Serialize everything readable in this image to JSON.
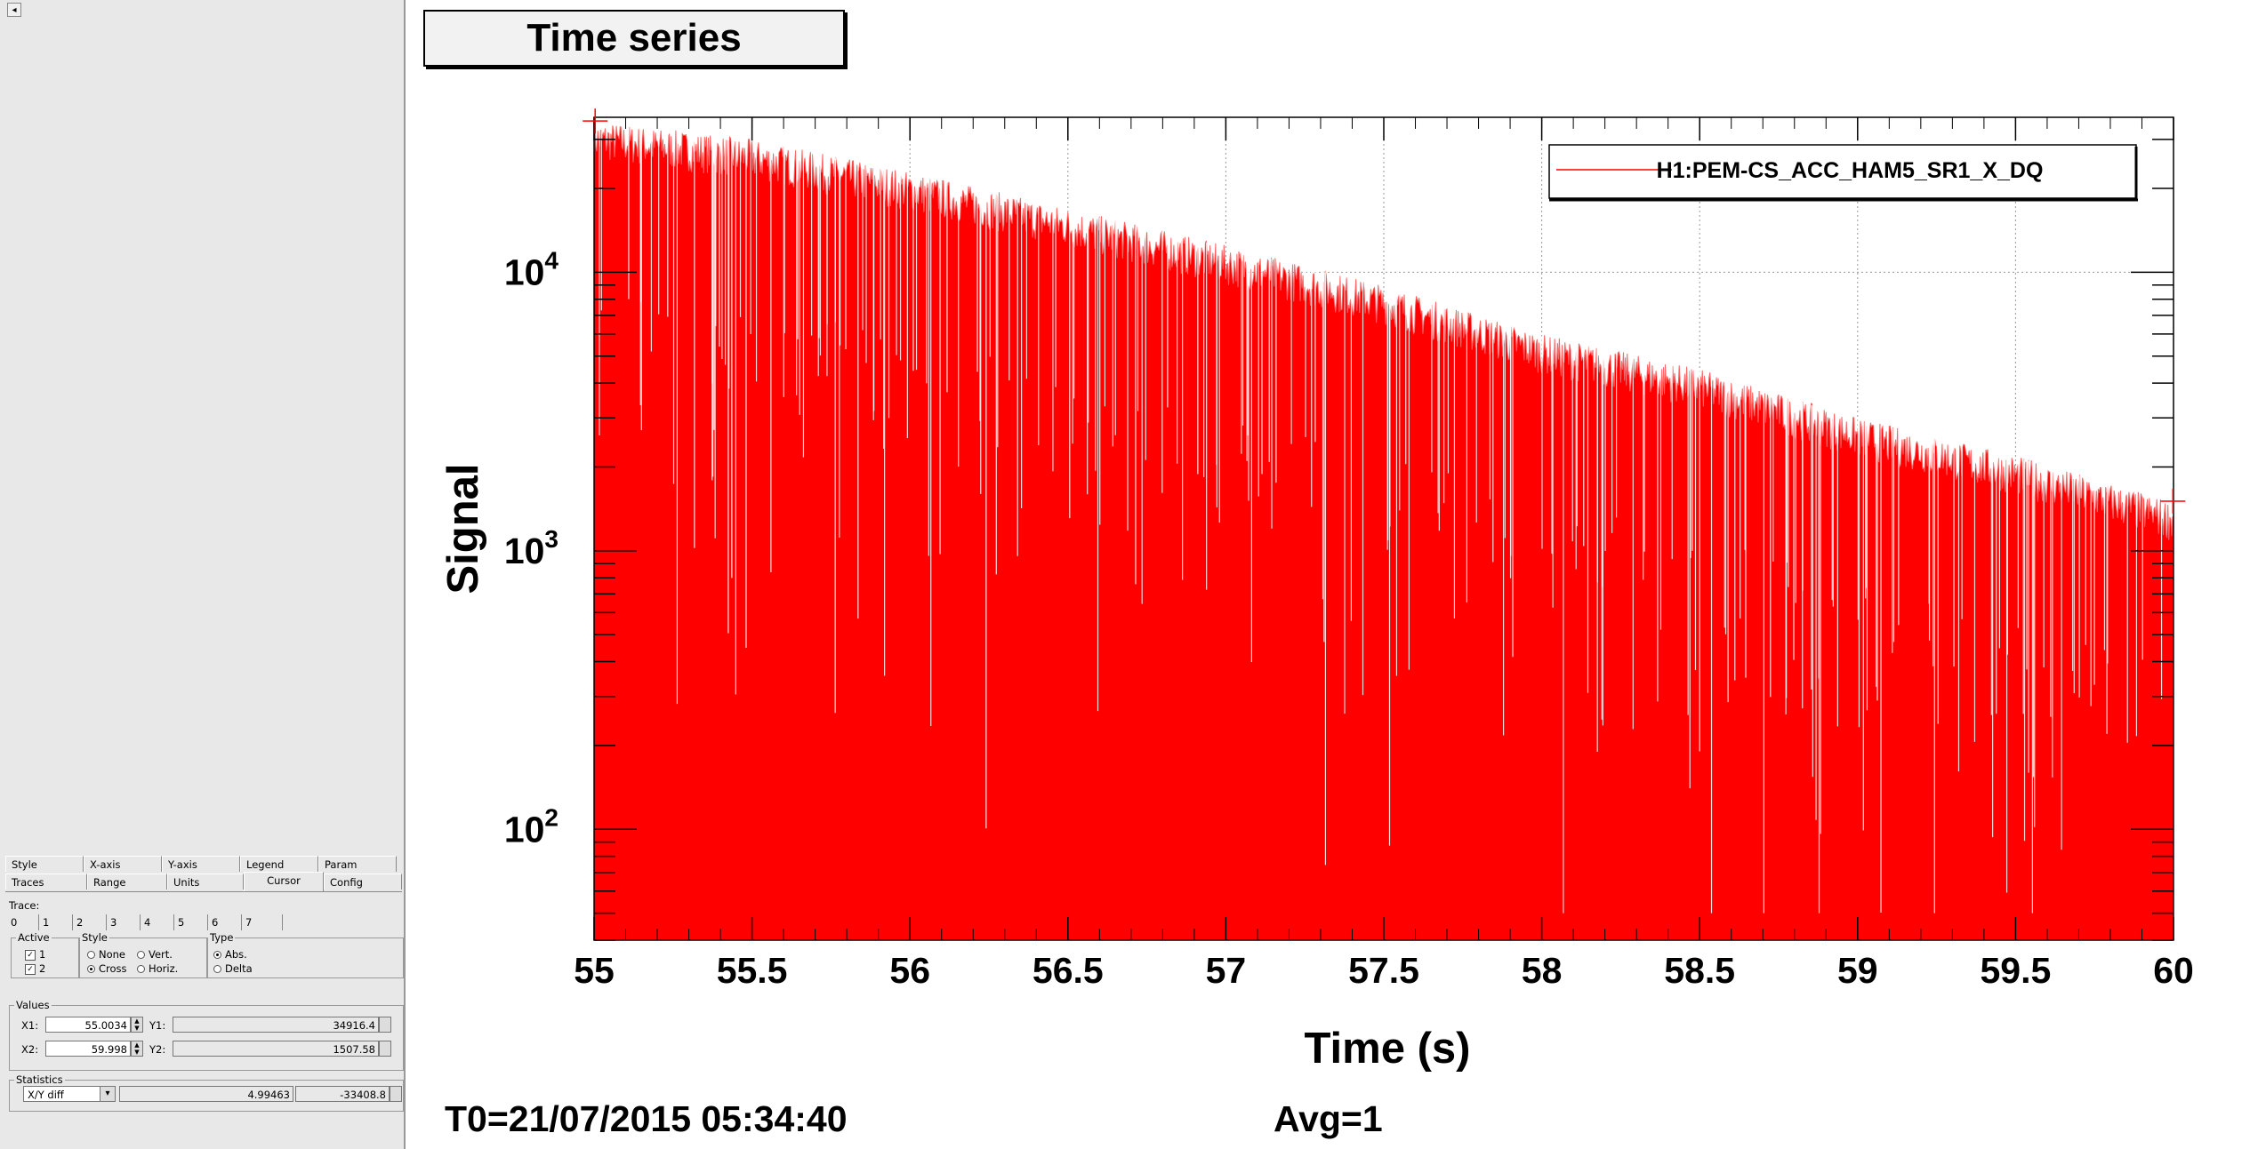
{
  "app": {
    "collapse_glyph": "◂"
  },
  "tabs_row1": [
    "Style",
    "X-axis",
    "Y-axis",
    "Legend",
    "Param"
  ],
  "tabs_row2": [
    "Traces",
    "Range",
    "Units",
    "Cursor",
    "Config"
  ],
  "active_tab": "Cursor",
  "trace": {
    "label": "Trace:",
    "tabs": [
      "0",
      "1",
      "2",
      "3",
      "4",
      "5",
      "6",
      "7"
    ]
  },
  "active_group": {
    "label": "Active",
    "items": [
      {
        "label": "1",
        "checked": true
      },
      {
        "label": "2",
        "checked": true
      }
    ]
  },
  "style_group": {
    "label": "Style",
    "options": [
      {
        "label": "None",
        "selected": false
      },
      {
        "label": "Vert.",
        "selected": false
      },
      {
        "label": "Cross",
        "selected": true
      },
      {
        "label": "Horiz.",
        "selected": false
      }
    ]
  },
  "type_group": {
    "label": "Type",
    "options": [
      {
        "label": "Abs.",
        "selected": true
      },
      {
        "label": "Delta",
        "selected": false
      }
    ]
  },
  "values_group": {
    "label": "Values",
    "x1_label": "X1:",
    "x1": "55.0034",
    "y1_label": "Y1:",
    "y1": "34916.4",
    "x2_label": "X2:",
    "x2": "59.998",
    "y2_label": "Y2:",
    "y2": "1507.58"
  },
  "statistics_group": {
    "label": "Statistics",
    "mode": "X/Y diff",
    "dx": "4.99463",
    "dy": "-33408.8"
  },
  "chart_data": {
    "type": "area",
    "title": "Time series",
    "xlabel": "Time (s)",
    "ylabel": "Signal",
    "xlim": [
      55,
      60
    ],
    "ylim": [
      40,
      36000
    ],
    "yscale": "log",
    "grid": true,
    "x_ticks": [
      "55",
      "55.5",
      "56",
      "56.5",
      "57",
      "57.5",
      "58",
      "58.5",
      "59",
      "59.5",
      "60"
    ],
    "y_ticks": [
      {
        "base": "10",
        "exp": "2",
        "value": 100
      },
      {
        "base": "10",
        "exp": "3",
        "value": 1000
      },
      {
        "base": "10",
        "exp": "4",
        "value": 10000
      }
    ],
    "legend": {
      "position": "top-right",
      "entries": [
        "H1:PEM-CS_ACC_HAM5_SR1_X_DQ"
      ]
    },
    "series": [
      {
        "name": "H1:PEM-CS_ACC_HAM5_SR1_X_DQ",
        "color": "#ff0000",
        "envelope_x": [
          55.0,
          55.5,
          56.0,
          56.5,
          57.0,
          57.5,
          58.0,
          58.5,
          59.0,
          59.5,
          60.0
        ],
        "envelope_y": [
          35000,
          30000,
          23000,
          17000,
          12500,
          9000,
          6000,
          4500,
          3000,
          2200,
          1500
        ]
      }
    ],
    "cursors": [
      {
        "x": 55.0034,
        "y": 34916.4
      },
      {
        "x": 59.998,
        "y": 1507.58
      }
    ]
  },
  "footer": {
    "t0": "T0=21/07/2015 05:34:40",
    "avg": "Avg=1"
  }
}
